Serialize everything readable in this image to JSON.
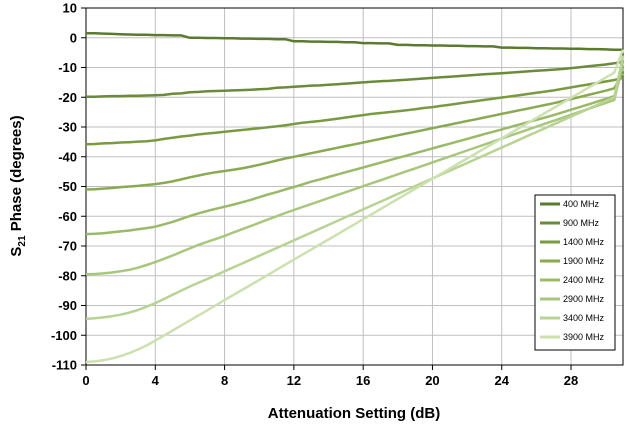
{
  "chart_data": {
    "type": "line",
    "title": "",
    "xlabel": "Attenuation Setting (dB)",
    "ylabel_main": "S",
    "ylabel_sub": "21",
    "ylabel_rest": " Phase (degrees)",
    "xlim": [
      0,
      31
    ],
    "ylim": [
      -110,
      10
    ],
    "x_ticks": [
      0,
      4,
      8,
      12,
      16,
      20,
      24,
      28
    ],
    "y_ticks": [
      10,
      0,
      -10,
      -20,
      -30,
      -40,
      -50,
      -60,
      -70,
      -80,
      -90,
      -100,
      -110
    ],
    "grid": true,
    "legend_position": "bottom-right",
    "x": [
      0,
      0.5,
      1,
      1.5,
      2,
      2.5,
      3,
      3.5,
      4,
      4.5,
      5,
      5.5,
      6,
      6.5,
      7,
      7.5,
      8,
      8.5,
      9,
      9.5,
      10,
      10.5,
      11,
      11.5,
      12,
      12.5,
      13,
      13.5,
      14,
      14.5,
      15,
      15.5,
      16,
      16.5,
      17,
      17.5,
      18,
      18.5,
      19,
      19.5,
      20,
      20.5,
      21,
      21.5,
      22,
      22.5,
      23,
      23.5,
      24,
      24.5,
      25,
      25.5,
      26,
      26.5,
      27,
      27.5,
      28,
      28.5,
      29,
      29.5,
      30,
      30.5,
      31
    ],
    "series": [
      {
        "name": "400 MHz",
        "color": "#5a7a2e",
        "values": [
          1.5,
          1.5,
          1.4,
          1.3,
          1.2,
          1.1,
          1.0,
          1.0,
          0.9,
          0.9,
          0.8,
          0.8,
          0.0,
          0.0,
          -0.1,
          -0.1,
          -0.2,
          -0.2,
          -0.3,
          -0.3,
          -0.4,
          -0.4,
          -0.5,
          -0.5,
          -1.2,
          -1.2,
          -1.3,
          -1.3,
          -1.4,
          -1.4,
          -1.5,
          -1.5,
          -1.8,
          -1.8,
          -1.9,
          -1.9,
          -2.4,
          -2.4,
          -2.5,
          -2.5,
          -2.6,
          -2.6,
          -2.7,
          -2.7,
          -2.8,
          -2.8,
          -2.9,
          -2.9,
          -3.3,
          -3.3,
          -3.4,
          -3.4,
          -3.5,
          -3.5,
          -3.6,
          -3.6,
          -3.7,
          -3.7,
          -3.8,
          -3.8,
          -3.9,
          -4.0,
          -4.0
        ]
      },
      {
        "name": "900 MHz",
        "color": "#6b8a3a",
        "values": [
          -19.8,
          -19.8,
          -19.7,
          -19.6,
          -19.6,
          -19.5,
          -19.5,
          -19.4,
          -19.3,
          -19.2,
          -18.8,
          -18.7,
          -18.3,
          -18.2,
          -18.0,
          -17.9,
          -17.8,
          -17.7,
          -17.6,
          -17.5,
          -17.3,
          -17.2,
          -16.8,
          -16.7,
          -16.5,
          -16.3,
          -16.1,
          -16.0,
          -15.8,
          -15.6,
          -15.4,
          -15.2,
          -15.0,
          -14.8,
          -14.6,
          -14.5,
          -14.3,
          -14.1,
          -13.9,
          -13.7,
          -13.5,
          -13.3,
          -13.1,
          -12.9,
          -12.7,
          -12.5,
          -12.3,
          -12.1,
          -11.9,
          -11.7,
          -11.5,
          -11.3,
          -11.1,
          -10.9,
          -10.7,
          -10.5,
          -10.2,
          -9.9,
          -9.6,
          -9.3,
          -9.0,
          -8.6,
          -8.0
        ]
      },
      {
        "name": "1400 MHz",
        "color": "#7a9a42",
        "values": [
          -35.8,
          -35.7,
          -35.5,
          -35.4,
          -35.2,
          -35.1,
          -34.9,
          -34.8,
          -34.5,
          -34.0,
          -33.6,
          -33.2,
          -32.9,
          -32.5,
          -32.2,
          -31.9,
          -31.6,
          -31.3,
          -31.0,
          -30.7,
          -30.4,
          -30.1,
          -29.8,
          -29.4,
          -29.0,
          -28.6,
          -28.3,
          -28.0,
          -27.6,
          -27.2,
          -26.8,
          -26.4,
          -26.0,
          -25.6,
          -25.3,
          -25.0,
          -24.7,
          -24.4,
          -24.0,
          -23.6,
          -23.3,
          -22.9,
          -22.5,
          -22.1,
          -21.7,
          -21.3,
          -20.9,
          -20.5,
          -20.1,
          -19.7,
          -19.3,
          -18.9,
          -18.5,
          -18.1,
          -17.7,
          -17.2,
          -16.7,
          -16.2,
          -15.7,
          -15.2,
          -14.7,
          -14.2,
          -13.5
        ]
      },
      {
        "name": "1900 MHz",
        "color": "#8aaa52",
        "values": [
          -51.0,
          -50.9,
          -50.7,
          -50.5,
          -50.2,
          -50.0,
          -49.8,
          -49.5,
          -49.2,
          -48.8,
          -48.3,
          -47.6,
          -46.9,
          -46.3,
          -45.7,
          -45.2,
          -44.8,
          -44.4,
          -43.9,
          -43.3,
          -42.7,
          -42.0,
          -41.3,
          -40.6,
          -40.0,
          -39.4,
          -38.8,
          -38.2,
          -37.6,
          -37.0,
          -36.4,
          -35.8,
          -35.2,
          -34.6,
          -34.0,
          -33.4,
          -32.8,
          -32.2,
          -31.6,
          -31.0,
          -30.4,
          -29.8,
          -29.2,
          -28.6,
          -28.0,
          -27.4,
          -26.8,
          -26.2,
          -25.6,
          -25.0,
          -24.4,
          -23.8,
          -23.2,
          -22.6,
          -22.0,
          -21.3,
          -20.6,
          -19.9,
          -19.2,
          -18.5,
          -17.8,
          -17.0,
          -12.0
        ]
      },
      {
        "name": "2400 MHz",
        "color": "#9aba68",
        "values": [
          -66.0,
          -65.9,
          -65.7,
          -65.4,
          -65.1,
          -64.8,
          -64.4,
          -64.0,
          -63.5,
          -62.7,
          -61.9,
          -60.9,
          -59.9,
          -59.0,
          -58.2,
          -57.5,
          -56.8,
          -56.1,
          -55.3,
          -54.5,
          -53.6,
          -52.7,
          -51.9,
          -51.0,
          -50.2,
          -49.3,
          -48.4,
          -47.6,
          -46.8,
          -46.0,
          -45.2,
          -44.4,
          -43.6,
          -42.8,
          -42.0,
          -41.2,
          -40.4,
          -39.6,
          -38.8,
          -38.0,
          -37.2,
          -36.4,
          -35.6,
          -34.8,
          -34.0,
          -33.2,
          -32.4,
          -31.6,
          -30.8,
          -30.0,
          -29.2,
          -28.4,
          -27.6,
          -26.8,
          -26.0,
          -25.1,
          -24.2,
          -23.3,
          -22.4,
          -21.5,
          -20.6,
          -19.6,
          -10.0
        ]
      },
      {
        "name": "2900 MHz",
        "color": "#a9c77c",
        "values": [
          -79.5,
          -79.4,
          -79.2,
          -78.9,
          -78.5,
          -78.0,
          -77.3,
          -76.4,
          -75.4,
          -74.3,
          -73.2,
          -72.0,
          -70.8,
          -69.6,
          -68.6,
          -67.6,
          -66.6,
          -65.5,
          -64.4,
          -63.3,
          -62.2,
          -61.1,
          -60.0,
          -58.9,
          -57.9,
          -56.9,
          -55.9,
          -54.9,
          -53.9,
          -52.9,
          -51.9,
          -50.9,
          -49.9,
          -48.9,
          -47.9,
          -46.9,
          -45.9,
          -44.9,
          -43.9,
          -42.9,
          -41.9,
          -40.9,
          -39.9,
          -38.9,
          -37.9,
          -36.9,
          -35.9,
          -34.9,
          -33.9,
          -32.9,
          -31.9,
          -30.9,
          -29.9,
          -28.9,
          -27.9,
          -26.9,
          -25.9,
          -24.9,
          -23.9,
          -22.9,
          -21.9,
          -20.9,
          -8.0
        ]
      },
      {
        "name": "3400 MHz",
        "color": "#b8d394",
        "values": [
          -94.5,
          -94.3,
          -94.0,
          -93.6,
          -93.1,
          -92.4,
          -91.5,
          -90.4,
          -89.2,
          -87.8,
          -86.4,
          -85.0,
          -83.6,
          -82.3,
          -81.1,
          -79.8,
          -78.5,
          -77.2,
          -75.9,
          -74.6,
          -73.3,
          -72.0,
          -70.7,
          -69.4,
          -68.1,
          -66.8,
          -65.5,
          -64.2,
          -62.9,
          -61.6,
          -60.3,
          -59.0,
          -57.7,
          -56.4,
          -55.1,
          -53.8,
          -52.5,
          -51.2,
          -49.9,
          -48.6,
          -47.3,
          -46.0,
          -44.7,
          -43.4,
          -42.1,
          -40.8,
          -39.5,
          -38.2,
          -36.9,
          -35.6,
          -34.3,
          -33.0,
          -31.7,
          -30.4,
          -29.1,
          -27.8,
          -26.5,
          -25.2,
          -23.9,
          -22.6,
          -21.3,
          -20.0,
          -6.0
        ]
      },
      {
        "name": "3900 MHz",
        "color": "#cde0b0",
        "values": [
          -109.0,
          -108.8,
          -108.4,
          -107.8,
          -107.0,
          -106.0,
          -104.8,
          -103.4,
          -101.8,
          -100.1,
          -98.4,
          -96.7,
          -95.0,
          -93.3,
          -91.6,
          -89.9,
          -88.2,
          -86.5,
          -84.8,
          -83.1,
          -81.4,
          -79.7,
          -78.0,
          -76.3,
          -74.6,
          -72.9,
          -71.2,
          -69.5,
          -67.8,
          -66.1,
          -64.4,
          -62.7,
          -61.0,
          -59.3,
          -57.6,
          -55.9,
          -54.2,
          -52.5,
          -50.8,
          -49.1,
          -47.4,
          -45.7,
          -44.0,
          -42.3,
          -40.6,
          -38.9,
          -37.2,
          -35.5,
          -33.8,
          -32.1,
          -30.4,
          -28.7,
          -27.0,
          -25.3,
          -23.6,
          -21.9,
          -20.2,
          -18.5,
          -16.8,
          -15.1,
          -13.4,
          -11.7,
          -4.0
        ]
      }
    ]
  }
}
